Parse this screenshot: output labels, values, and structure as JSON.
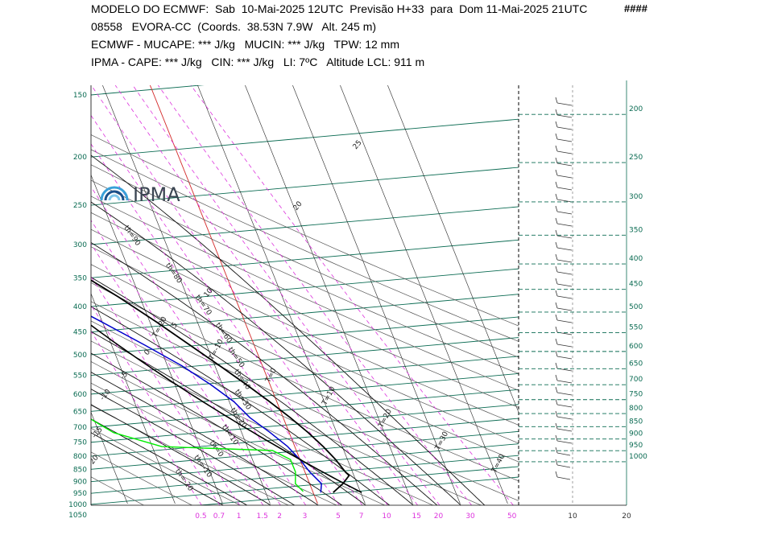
{
  "header": {
    "line1": "MODELO DO ECMWF:  Sab  10-Mai-2025 12UTC  Previsão H+33  para  Dom 11-Mai-2025 21UTC",
    "marks": "####",
    "line2": "08558   EVORA-CC  (Coords.  38.53N 7.9W   Alt. 245 m)",
    "line3": "ECMWF - MUCAPE: *** J/kg   MUCIN: *** J/kg   TPW: 12 mm",
    "line4": "IPMA - CAPE: *** J/kg   CIN: *** J/kg   LI: 7ºC   Altitude LCL: 911 m"
  },
  "logo": {
    "text": "IPMA"
  },
  "colors": {
    "isobar": "#0a6b52",
    "isotherm": "#000000",
    "dry_adiabat": "#555555",
    "mixing_ratio": "#dd33dd",
    "temperature": "#000000",
    "dewpoint": "#00ee00",
    "wet_bulb": "#0000cc",
    "zero_isotherm": "#e03030",
    "tick_pressure": "#0a6b52",
    "tick_mixing": "#dd33dd"
  },
  "chart_data": {
    "type": "line",
    "title": "",
    "diagram": "skew-T log-p",
    "pressure_ticks_left": [
      150,
      200,
      250,
      300,
      350,
      400,
      450,
      500,
      550,
      600,
      650,
      700,
      750,
      800,
      850,
      900,
      950,
      1000,
      1050
    ],
    "pressure_ticks_right": [
      200,
      250,
      300,
      350,
      400,
      450,
      500,
      550,
      600,
      650,
      700,
      750,
      800,
      850,
      900,
      950,
      1000
    ],
    "mixing_ratio_ticks": [
      "0.5",
      "0.7",
      "1",
      "1.5",
      "2",
      "3",
      "5",
      "7",
      "10",
      "15",
      "20",
      "30",
      "50"
    ],
    "wind_axis_ticks": [
      "10",
      "20"
    ],
    "isotherm_labels": [
      "T=-90",
      "T=-80",
      "T=-70",
      "T=-60",
      "T=-50",
      "T=-40",
      "T=-30",
      "T=-20",
      "T=-10",
      "T=0",
      "T=10",
      "T=20",
      "T=30",
      "T=40"
    ],
    "dry_adiabat_labels": [
      "th=110",
      "th=100",
      "th=90",
      "th=80",
      "th=70",
      "th=60",
      "th=50",
      "th=40",
      "th=30",
      "th=20",
      "th=10",
      "th=0",
      "th=-10",
      "th=-20"
    ],
    "pseudoadiabat_labels": [
      "20",
      "25",
      "10",
      "5",
      "0",
      "-5",
      "-10",
      "-15",
      "-20"
    ],
    "series": [
      {
        "key": "temperature",
        "points": [
          [
            200,
            -57
          ],
          [
            250,
            -48.5
          ],
          [
            300,
            -39.5
          ],
          [
            350,
            -32
          ],
          [
            400,
            -24.5
          ],
          [
            450,
            -18.5
          ],
          [
            500,
            -13.5
          ],
          [
            550,
            -9
          ],
          [
            600,
            -5
          ],
          [
            650,
            -1.5
          ],
          [
            700,
            1.5
          ],
          [
            750,
            4
          ],
          [
            800,
            6
          ],
          [
            850,
            7.5
          ],
          [
            900,
            8.5
          ],
          [
            915,
            9
          ],
          [
            950,
            7
          ],
          [
            990,
            4.2
          ]
        ]
      },
      {
        "key": "dewpoint",
        "points": [
          [
            172,
            -69
          ],
          [
            200,
            -78
          ],
          [
            250,
            -82
          ],
          [
            300,
            -78
          ],
          [
            350,
            -70
          ],
          [
            400,
            -64
          ],
          [
            450,
            -57
          ],
          [
            500,
            -50
          ],
          [
            550,
            -49
          ],
          [
            600,
            -44
          ],
          [
            650,
            -46
          ],
          [
            700,
            -41
          ],
          [
            750,
            -37
          ],
          [
            800,
            -28
          ],
          [
            815,
            -5
          ],
          [
            850,
            -2
          ],
          [
            900,
            -2
          ],
          [
            950,
            -3
          ],
          [
            985,
            -2
          ]
        ]
      },
      {
        "key": "wet_bulb",
        "points": [
          [
            150,
            -40
          ],
          [
            200,
            -47
          ],
          [
            250,
            -54
          ],
          [
            300,
            -54
          ],
          [
            350,
            -46
          ],
          [
            400,
            -38
          ],
          [
            450,
            -30
          ],
          [
            500,
            -23
          ],
          [
            550,
            -17
          ],
          [
            600,
            -12.5
          ],
          [
            650,
            -9
          ],
          [
            700,
            -7
          ],
          [
            750,
            -4
          ],
          [
            800,
            -1.5
          ],
          [
            850,
            0
          ],
          [
            900,
            1
          ],
          [
            950,
            2.5
          ],
          [
            990,
            1.6
          ]
        ]
      }
    ],
    "xlim": [
      -40,
      50
    ],
    "ylim": [
      1050,
      150
    ],
    "legend": "none",
    "grid": true
  }
}
